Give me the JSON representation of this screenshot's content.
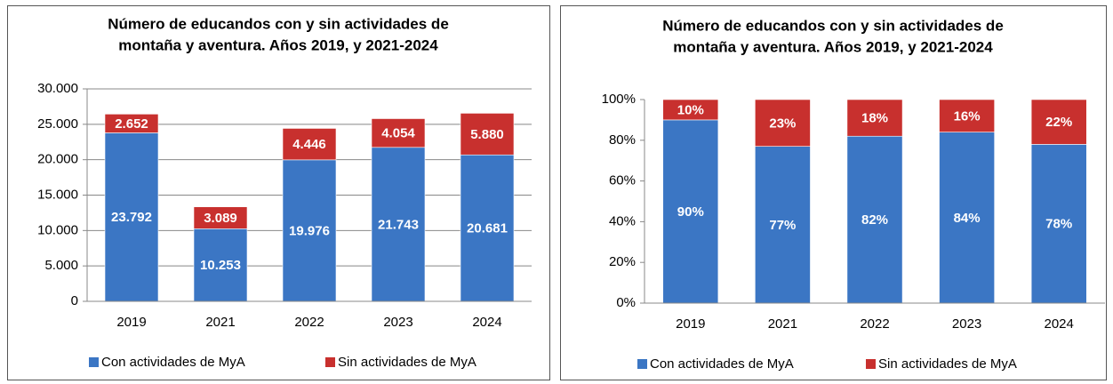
{
  "chart_data": [
    {
      "type": "stacked_bar",
      "title": [
        "Número de educandos con y sin actividades de",
        "montaña y aventura. Años 2019, y 2021-2024"
      ],
      "categories": [
        "2019",
        "2021",
        "2022",
        "2023",
        "2024"
      ],
      "series": [
        {
          "name": "Con actividades de MyA",
          "color": "#3b76c4",
          "values": [
            23792,
            10253,
            19976,
            21743,
            20681
          ],
          "value_labels": [
            "23.792",
            "10.253",
            "19.976",
            "21.743",
            "20.681"
          ]
        },
        {
          "name": "Sin actividades de MyA",
          "color": "#c8302e",
          "values": [
            2652,
            3089,
            4446,
            4054,
            5880
          ],
          "value_labels": [
            "2.652",
            "3.089",
            "4.446",
            "4.054",
            "5.880"
          ]
        }
      ],
      "ylim": [
        0,
        30000
      ],
      "yticks": [
        0,
        {
          "value": 5000,
          "label": "5.000"
        },
        {
          "value": 10000,
          "label": "10.000"
        },
        {
          "value": 15000,
          "label": "15.000"
        },
        {
          "value": 20000,
          "label": "20.000"
        },
        {
          "value": 25000,
          "label": "25.000"
        },
        {
          "value": 30000,
          "label": "30.000"
        }
      ],
      "grid": true
    },
    {
      "type": "stacked_bar",
      "title": [
        "Número de educandos con y sin actividades de",
        "montaña y aventura. Años 2019, y 2021-2024"
      ],
      "categories": [
        "2019",
        "2021",
        "2022",
        "2023",
        "2024"
      ],
      "series": [
        {
          "name": "Con actividades de MyA",
          "color": "#3b76c4",
          "values": [
            90,
            77,
            82,
            84,
            78
          ],
          "value_labels": [
            "90%",
            "77%",
            "82%",
            "84%",
            "78%"
          ]
        },
        {
          "name": "Sin actividades de MyA",
          "color": "#c8302e",
          "values": [
            10,
            23,
            18,
            16,
            22
          ],
          "value_labels": [
            "10%",
            "23%",
            "18%",
            "16%",
            "22%"
          ]
        }
      ],
      "ylim": [
        0,
        100
      ],
      "yticks": [
        {
          "value": 0,
          "label": "0%"
        },
        {
          "value": 20,
          "label": "20%"
        },
        {
          "value": 40,
          "label": "40%"
        },
        {
          "value": 60,
          "label": "60%"
        },
        {
          "value": 80,
          "label": "80%"
        },
        {
          "value": 100,
          "label": "100%"
        }
      ],
      "grid": false
    }
  ]
}
